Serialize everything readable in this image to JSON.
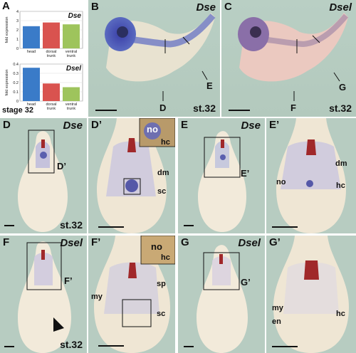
{
  "panels": {
    "A": {
      "label": "A"
    },
    "B": {
      "label": "B",
      "gene": "Dse",
      "stage": "st.32",
      "ann": [
        "E",
        "D"
      ]
    },
    "C": {
      "label": "C",
      "gene": "Dsel",
      "stage": "st.32",
      "ann": [
        "G",
        "F"
      ]
    },
    "D": {
      "label": "D",
      "gene": "Dse",
      "stage": "st.32",
      "ann": [
        "D’"
      ]
    },
    "D2": {
      "label": "D’",
      "ann": [
        "no",
        "hc",
        "dm",
        "sc"
      ]
    },
    "E": {
      "label": "E",
      "gene": "Dse",
      "ann": [
        "E’"
      ]
    },
    "E2": {
      "label": "E’",
      "ann": [
        "dm",
        "no",
        "hc"
      ]
    },
    "F": {
      "label": "F",
      "gene": "Dsel",
      "stage": "st.32",
      "ann": [
        "F’"
      ]
    },
    "F2": {
      "label": "F’",
      "ann": [
        "no",
        "hc",
        "sp",
        "my",
        "sc"
      ]
    },
    "G": {
      "label": "G",
      "gene": "Dsel",
      "ann": [
        "G’"
      ]
    },
    "G2": {
      "label": "G’",
      "ann": [
        "my",
        "hc",
        "en"
      ]
    }
  },
  "chart_data": [
    {
      "type": "bar",
      "title": "Dse",
      "ylabel": "fold expression",
      "categories": [
        "head",
        "dorsal trunk",
        "ventral trunk"
      ],
      "values": [
        2.4,
        2.8,
        2.6
      ],
      "ylim": [
        0,
        4
      ],
      "yticks": [
        "0",
        "1",
        "2",
        "3",
        "4"
      ],
      "colors": [
        "#3a7bc8",
        "#d9534f",
        "#9ec45c"
      ]
    },
    {
      "type": "bar",
      "title": "Dsel",
      "ylabel": "fold expression",
      "categories": [
        "head",
        "dorsal trunk",
        "ventral trunk"
      ],
      "values": [
        0.36,
        0.19,
        0.15
      ],
      "ylim": [
        0,
        0.4
      ],
      "yticks": [
        "0",
        "0.1",
        "0.2",
        "0.3",
        "0.4"
      ],
      "colors": [
        "#3a7bc8",
        "#d9534f",
        "#9ec45c"
      ]
    }
  ],
  "stage_label": "stage 32"
}
